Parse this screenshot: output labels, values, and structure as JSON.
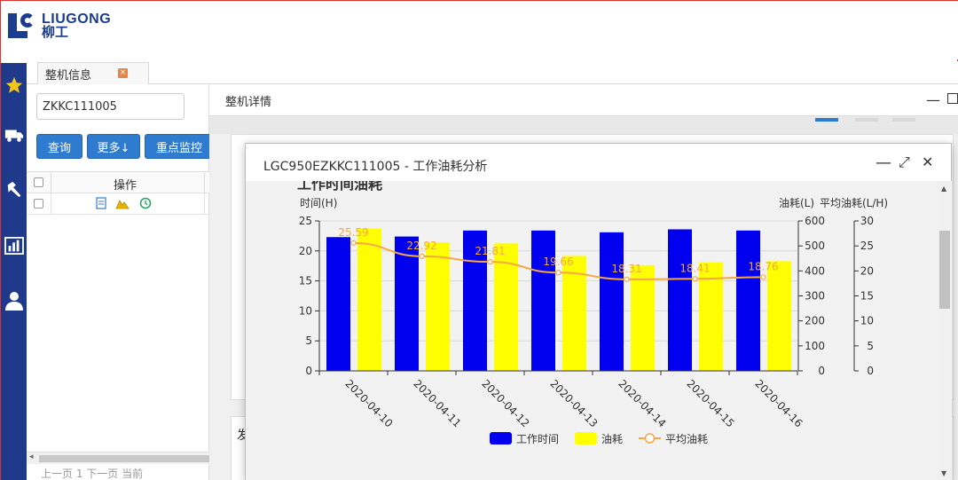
{
  "header": {
    "logo_en": "LIUGONG",
    "logo_cn": "柳工"
  },
  "nav": {
    "icons": [
      "star-icon",
      "truck-icon",
      "hammer-icon",
      "bar-chart-icon",
      "user-icon"
    ]
  },
  "tabs": [
    {
      "label": "整机信息",
      "close": "×"
    }
  ],
  "leftpanel": {
    "search_value": "ZKKC111005",
    "buttons": {
      "query": "查询",
      "more": "更多↓",
      "monitor": "重点监控"
    },
    "grid_header": "操作",
    "pager_text": "上一页 1 下一页 当前"
  },
  "detail": {
    "title": "整机详情",
    "minimize": "—",
    "section2_label": "发"
  },
  "modal": {
    "title": "LGC950EZKKC111005 - 工作油耗分析",
    "minimize": "—",
    "maximize": "⤢",
    "close": "✕"
  },
  "colors": {
    "work_time": "#0000ee",
    "fuel": "#ffff00",
    "avg_fuel": "#f5a742",
    "nav_bg": "#1f3a8a",
    "button_bg": "#2f7bd0"
  },
  "chart_data": {
    "type": "bar",
    "title": "工作时间油耗",
    "ylabel_left": "时间(H)",
    "ylabel_right1": "油耗(L)",
    "ylabel_right2": "平均油耗(L/H)",
    "categories": [
      "2020-04-10",
      "2020-04-11",
      "2020-04-12",
      "2020-04-13",
      "2020-04-14",
      "2020-04-15",
      "2020-04-16"
    ],
    "series": [
      {
        "name": "工作时间",
        "type": "bar",
        "axis": "left",
        "values": [
          22.3,
          22.4,
          23.4,
          23.4,
          23.1,
          23.6,
          23.4
        ]
      },
      {
        "name": "油耗",
        "type": "bar",
        "axis": "right1",
        "values": [
          570,
          514,
          510,
          460,
          423,
          434,
          439
        ]
      },
      {
        "name": "平均油耗",
        "type": "line",
        "axis": "right2",
        "values": [
          25.59,
          22.92,
          21.81,
          19.66,
          18.31,
          18.41,
          18.76
        ]
      }
    ],
    "ylim_left": [
      0,
      25
    ],
    "yticks_left": [
      "0",
      "5",
      "10",
      "15",
      "20",
      "25"
    ],
    "ylim_right1": [
      0,
      600
    ],
    "yticks_right1": [
      "0",
      "100",
      "200",
      "300",
      "400",
      "500",
      "600"
    ],
    "ylim_right2": [
      0,
      30
    ],
    "yticks_right2": [
      "0",
      "5",
      "10",
      "15",
      "20",
      "25",
      "30"
    ],
    "grid": true,
    "legend_position": "bottom"
  }
}
